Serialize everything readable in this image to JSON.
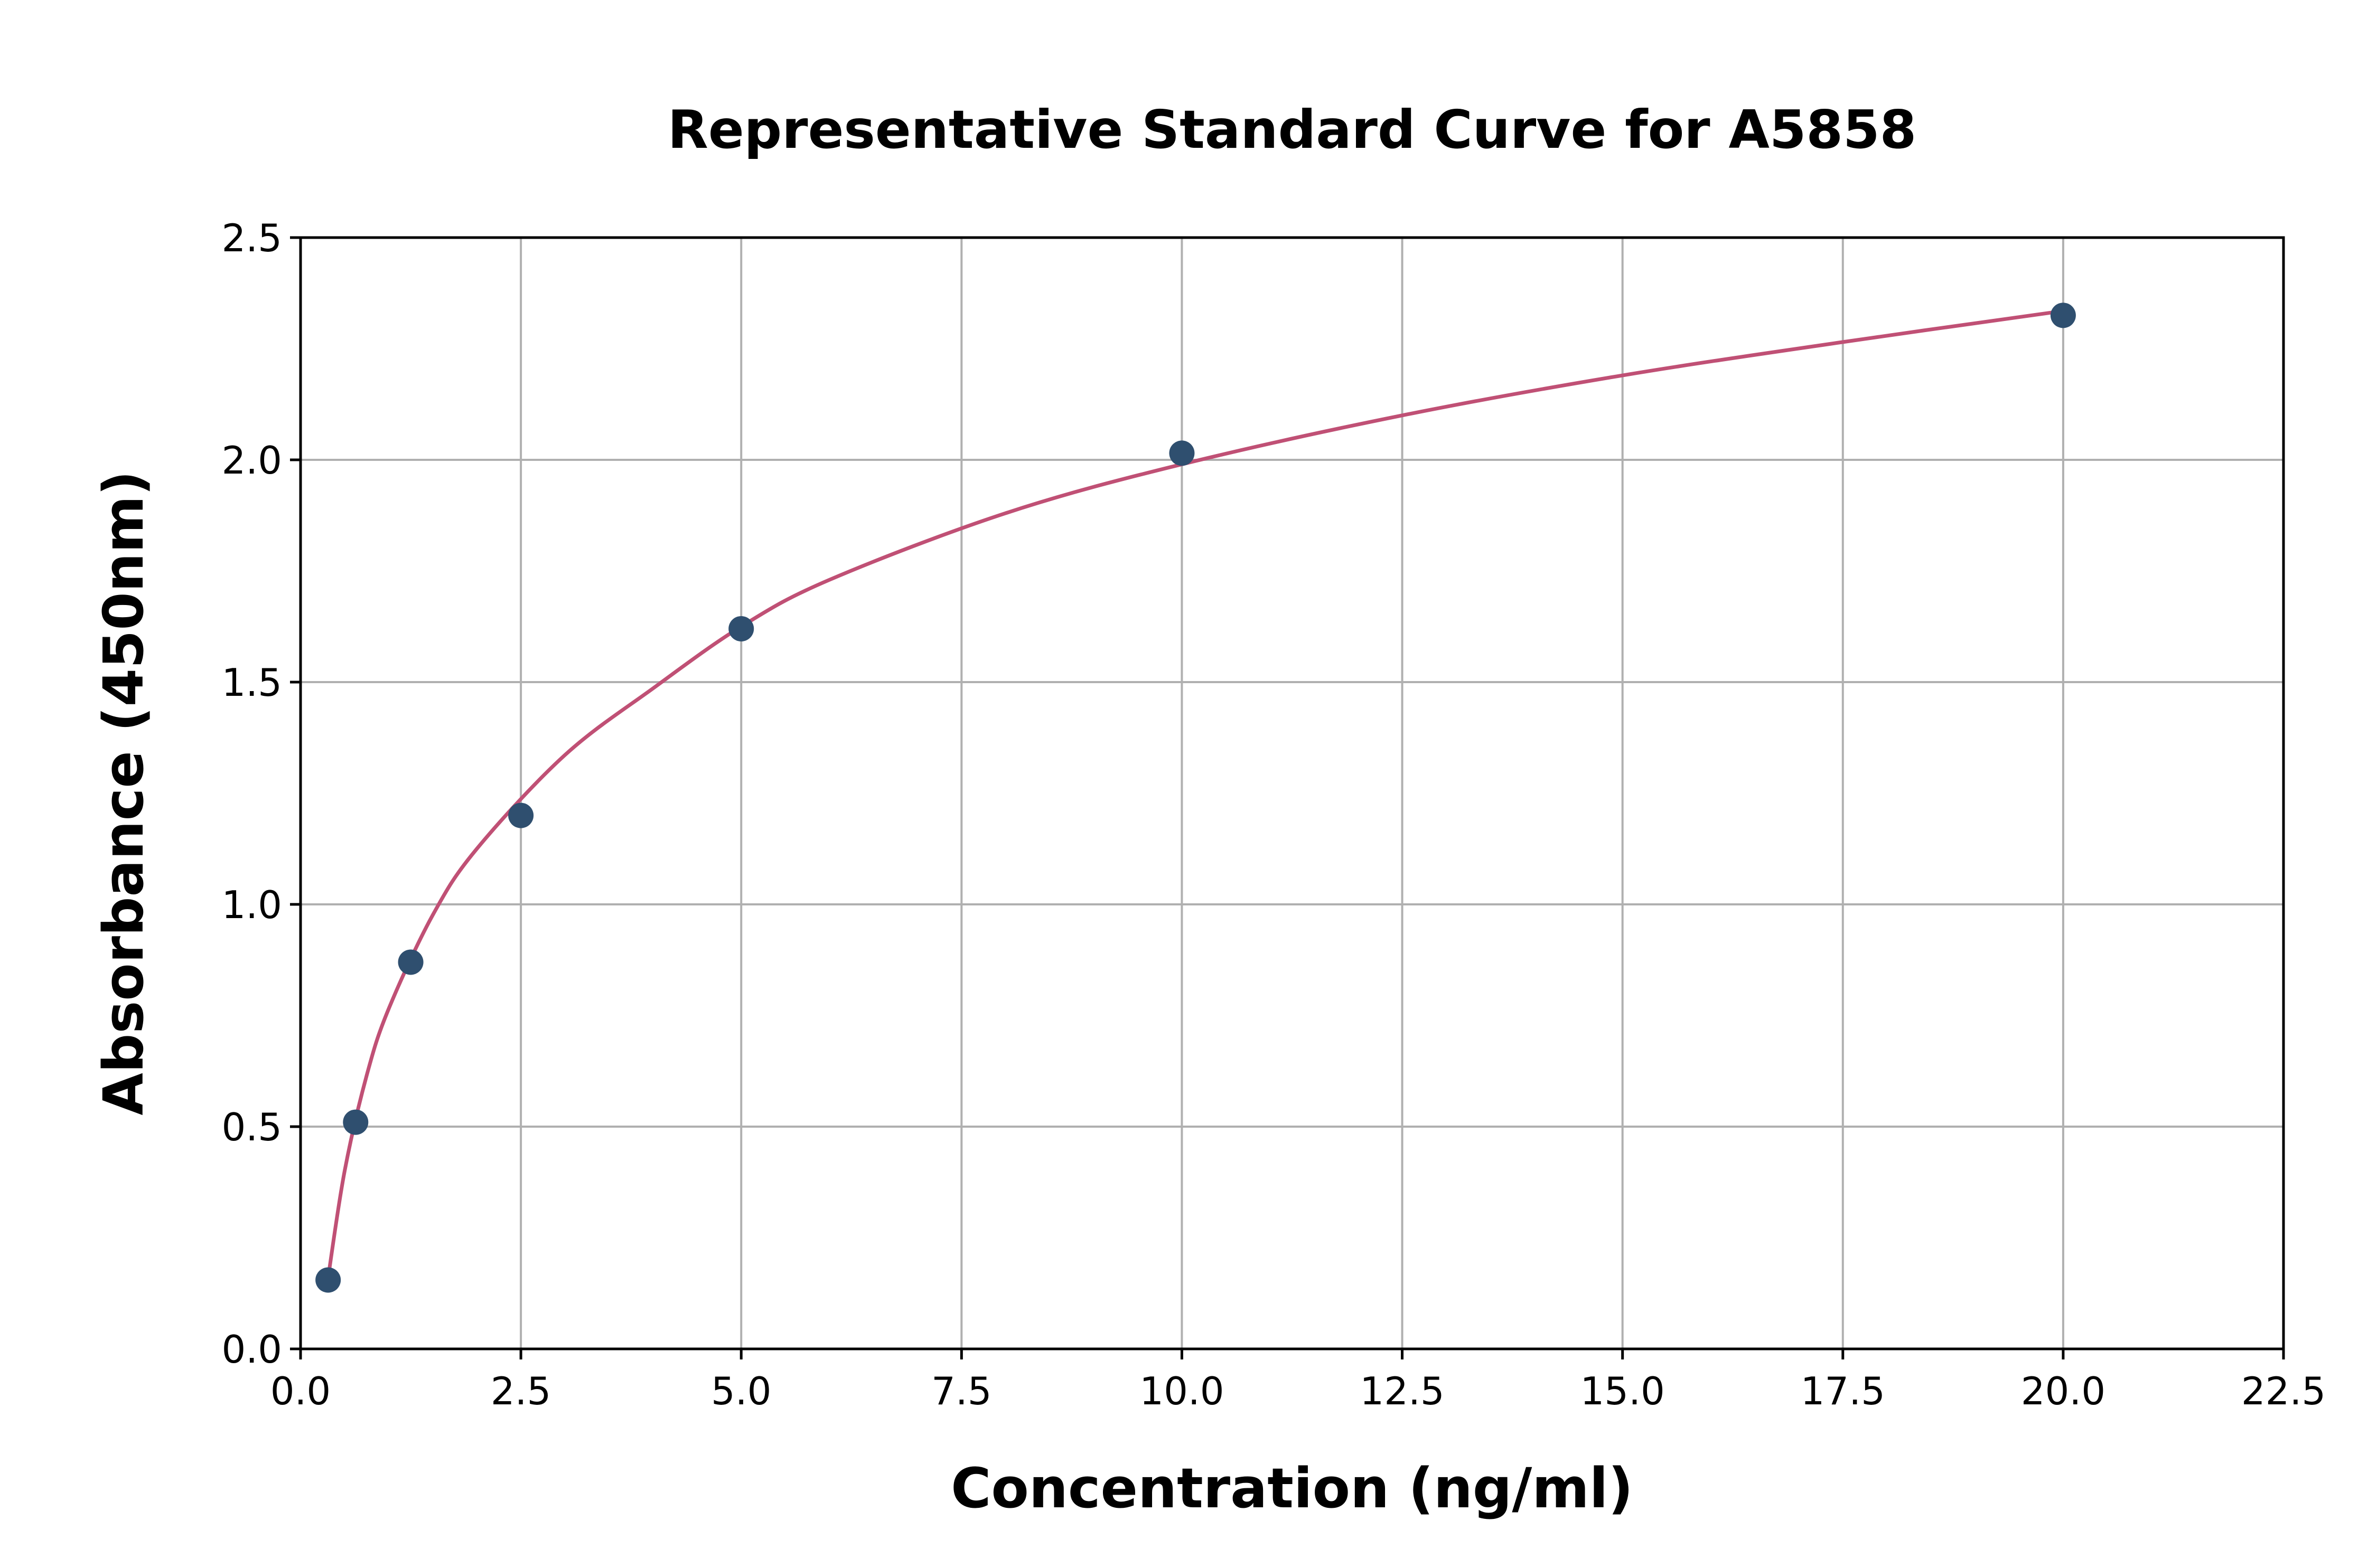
{
  "chart_data": {
    "type": "scatter",
    "title": "Representative Standard Curve for A5858",
    "xlabel": "Concentration (ng/ml)",
    "ylabel": "Absorbance (450nm)",
    "xlim": [
      0,
      22.5
    ],
    "ylim": [
      0,
      2.5
    ],
    "xticks": [
      "0.0",
      "2.5",
      "5.0",
      "7.5",
      "10.0",
      "12.5",
      "15.0",
      "17.5",
      "20.0",
      "22.5"
    ],
    "yticks": [
      "0.0",
      "0.5",
      "1.0",
      "1.5",
      "2.0",
      "2.5"
    ],
    "grid": true,
    "points": {
      "x": [
        0.3125,
        0.625,
        1.25,
        2.5,
        5,
        10,
        20
      ],
      "y": [
        0.155,
        0.51,
        0.87,
        1.2,
        1.62,
        2.015,
        2.325
      ]
    },
    "fit_curve": {
      "x": [
        0.3125,
        0.5,
        0.75,
        1,
        1.5,
        2,
        3,
        4,
        5,
        6,
        8,
        10,
        12.5,
        15,
        17.5,
        20
      ],
      "y": [
        0.16,
        0.4,
        0.615,
        0.765,
        0.976,
        1.125,
        1.336,
        1.486,
        1.625,
        1.73,
        1.88,
        1.99,
        2.1,
        2.19,
        2.265,
        2.335
      ]
    },
    "colors": {
      "points": "#2f4f6f",
      "curve": "#c05075",
      "grid": "#b0b0b0"
    }
  }
}
